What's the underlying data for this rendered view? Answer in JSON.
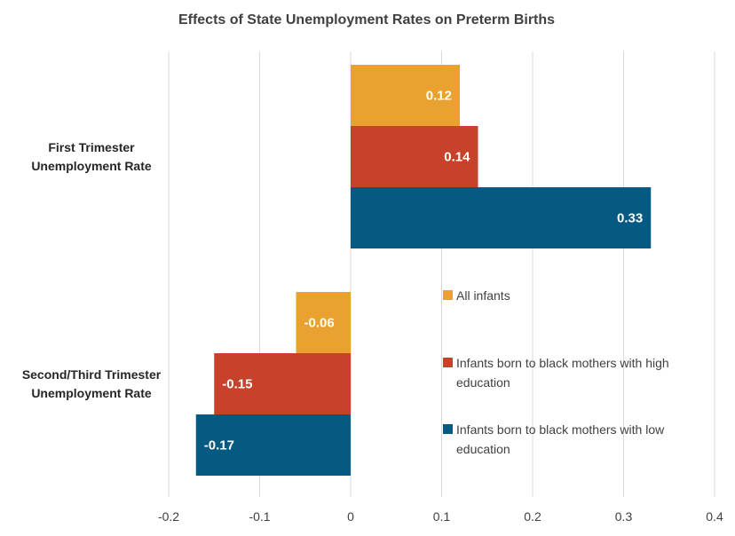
{
  "chart_data": {
    "type": "bar",
    "orientation": "horizontal",
    "title": "Effects of State Unemployment  Rates on Preterm Births",
    "categories": [
      [
        "First Trimester",
        "Unemployment Rate"
      ],
      [
        "Second/Third Trimester",
        "Unemployment Rate"
      ]
    ],
    "series": [
      {
        "name": "All infants",
        "color": "#E9A22F",
        "values": [
          0.12,
          -0.06
        ],
        "labels": [
          "0.12",
          "-0.06"
        ]
      },
      {
        "name": "Infants born to black mothers with high education",
        "legend_lines": [
          "Infants born to black mothers with high",
          "education"
        ],
        "color": "#C8412B",
        "values": [
          0.14,
          -0.15
        ],
        "labels": [
          "0.14",
          "-0.15"
        ]
      },
      {
        "name": "Infants born to black mothers with low education",
        "legend_lines": [
          "Infants born to black mothers with low",
          "education"
        ],
        "color": "#045A82",
        "values": [
          0.33,
          -0.17
        ],
        "labels": [
          "0.33",
          "-0.17"
        ]
      }
    ],
    "xlim": [
      -0.2,
      0.4
    ],
    "xticks": [
      -0.2,
      -0.1,
      0,
      0.1,
      0.2,
      0.3,
      0.4
    ],
    "xtick_labels": [
      "-0.2",
      "-0.1",
      "0",
      "0.1",
      "0.2",
      "0.3",
      "0.4"
    ],
    "grid": true,
    "legend_position": "right"
  }
}
